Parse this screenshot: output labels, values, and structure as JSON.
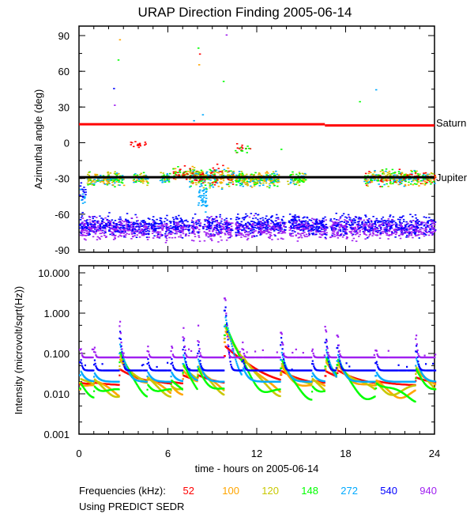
{
  "chart_data": [
    {
      "type": "scatter",
      "title": "URAP Direction Finding  2005-06-14",
      "ylabel": "Azimuthal angle (deg)",
      "xlim": [
        0,
        24
      ],
      "ylim": [
        -95,
        95
      ],
      "yticks": [
        90,
        60,
        30,
        0,
        -30,
        -60,
        -90
      ],
      "reference_lines": [
        {
          "name": "Saturn",
          "color": "#ff0000",
          "segments": [
            {
              "x": [
                0,
                16.6
              ],
              "y": 15.5
            },
            {
              "x": [
                16.6,
                24
              ],
              "y": 14.5
            }
          ]
        },
        {
          "name": "Jupiter",
          "color": "#000000",
          "segments": [
            {
              "x": [
                0,
                24
              ],
              "y": -29
            }
          ]
        }
      ],
      "clusters": [
        {
          "freqs": [
            540,
            940
          ],
          "x": [
            0,
            24
          ],
          "center": -72,
          "spread": 7,
          "count": 2600,
          "gaps": [
            [
              4.7,
              4.8
            ],
            [
              7.4,
              7.5
            ],
            [
              8.2,
              8.3
            ],
            [
              10.3,
              10.5
            ],
            [
              13.9,
              14.1
            ],
            [
              16.7,
              16.9
            ]
          ]
        },
        {
          "freqs": [
            100,
            120,
            148,
            272
          ],
          "x": [
            0.5,
            3.0
          ],
          "center": -30,
          "spread": 5,
          "count": 180
        },
        {
          "freqs": [
            100,
            120,
            148,
            272
          ],
          "x": [
            3.6,
            4.6
          ],
          "center": -30,
          "spread": 4,
          "count": 60
        },
        {
          "freqs": [
            120,
            148,
            272
          ],
          "x": [
            5.4,
            6.1
          ],
          "center": -29,
          "spread": 4,
          "count": 40
        },
        {
          "freqs": [
            52,
            100,
            148
          ],
          "x": [
            6.3,
            7.3
          ],
          "center": -26,
          "spread": 5,
          "count": 60
        },
        {
          "freqs": [
            52,
            100,
            120,
            148,
            272
          ],
          "x": [
            7.4,
            10.4
          ],
          "center": -28,
          "spread": 7,
          "count": 320
        },
        {
          "freqs": [
            100,
            120,
            148,
            272
          ],
          "x": [
            10.5,
            13.5
          ],
          "center": -30,
          "spread": 5,
          "count": 260
        },
        {
          "freqs": [
            148,
            272,
            120
          ],
          "x": [
            14.0,
            15.3
          ],
          "center": -30,
          "spread": 4,
          "count": 70
        },
        {
          "freqs": [
            100,
            120,
            148,
            272,
            52
          ],
          "x": [
            19.2,
            24
          ],
          "center": -29,
          "spread": 5,
          "count": 360
        },
        {
          "freqs": [
            52
          ],
          "x": [
            3.4,
            4.6
          ],
          "center": -1,
          "spread": 3,
          "count": 15
        },
        {
          "freqs": [
            52,
            148
          ],
          "x": [
            10.5,
            11.6
          ],
          "center": -4,
          "spread": 4,
          "count": 20
        },
        {
          "freqs": [
            272
          ],
          "x": [
            8.0,
            8.6
          ],
          "center": -48,
          "spread": 10,
          "count": 40
        },
        {
          "freqs": [
            272,
            540
          ],
          "x": [
            0,
            0.4
          ],
          "center": -45,
          "spread": 8,
          "count": 25
        }
      ],
      "outliers": [
        {
          "x": 2.3,
          "y": 46,
          "freq": 540
        },
        {
          "x": 2.7,
          "y": 87,
          "freq": 100
        },
        {
          "x": 2.6,
          "y": 70,
          "freq": 148
        },
        {
          "x": 2.35,
          "y": 32,
          "freq": 940
        },
        {
          "x": 8.0,
          "y": 80,
          "freq": 148
        },
        {
          "x": 8.05,
          "y": 66,
          "freq": 100
        },
        {
          "x": 8.1,
          "y": 75,
          "freq": 52
        },
        {
          "x": 9.9,
          "y": 91,
          "freq": 940
        },
        {
          "x": 9.7,
          "y": 52,
          "freq": 148
        },
        {
          "x": 8.3,
          "y": 24,
          "freq": 272
        },
        {
          "x": 18.9,
          "y": 35,
          "freq": 148
        },
        {
          "x": 20.0,
          "y": 45,
          "freq": 272
        },
        {
          "x": 13.6,
          "y": -5,
          "freq": 148
        },
        {
          "x": 7.7,
          "y": 19,
          "freq": 272
        }
      ]
    },
    {
      "type": "line",
      "ylabel": "Intensity (microvolt/sqrt(Hz))",
      "xlabel": "time - hours on 2005-06-14",
      "xlim": [
        0,
        24
      ],
      "xticks": [
        "0",
        "6",
        "12",
        "18",
        "24"
      ],
      "yscale": "log",
      "ylim": [
        0.001,
        10
      ],
      "yticks": [
        "10.000",
        "1.000",
        "0.100",
        "0.010",
        "0.001"
      ],
      "series": [
        {
          "name": "52",
          "baseline": 0.016
        },
        {
          "name": "100",
          "baseline": 0.013
        },
        {
          "name": "120",
          "baseline": 0.014
        },
        {
          "name": "148",
          "baseline": 0.011
        },
        {
          "name": "272",
          "baseline": 0.02
        },
        {
          "name": "540",
          "baseline": 0.038
        },
        {
          "name": "940",
          "baseline": 0.08
        }
      ],
      "bursts": [
        {
          "t": 0.05,
          "peak": 0.09
        },
        {
          "t": 1.0,
          "peak": 0.06
        },
        {
          "t": 2.7,
          "peak": 0.8
        },
        {
          "t": 4.6,
          "peak": 0.07
        },
        {
          "t": 6.2,
          "peak": 0.07
        },
        {
          "t": 7.0,
          "peak": 0.35
        },
        {
          "t": 8.0,
          "peak": 0.25
        },
        {
          "t": 9.8,
          "peak": 4.5
        },
        {
          "t": 11.0,
          "peak": 0.1
        },
        {
          "t": 13.6,
          "peak": 0.5
        },
        {
          "t": 15.7,
          "peak": 0.07
        },
        {
          "t": 16.6,
          "peak": 0.6
        },
        {
          "t": 17.4,
          "peak": 0.4
        },
        {
          "t": 20.0,
          "peak": 0.08
        },
        {
          "t": 22.7,
          "peak": 0.3
        }
      ]
    }
  ],
  "legend": {
    "label": "Frequencies (kHz):",
    "items": [
      {
        "name": "52",
        "color": "#ff0000"
      },
      {
        "name": "100",
        "color": "#ffa500"
      },
      {
        "name": "120",
        "color": "#c8c800"
      },
      {
        "name": "148",
        "color": "#00ff00"
      },
      {
        "name": "272",
        "color": "#00aaff"
      },
      {
        "name": "540",
        "color": "#0000ff"
      },
      {
        "name": "940",
        "color": "#a020f0"
      }
    ],
    "note": "Using PREDICT SEDR"
  }
}
